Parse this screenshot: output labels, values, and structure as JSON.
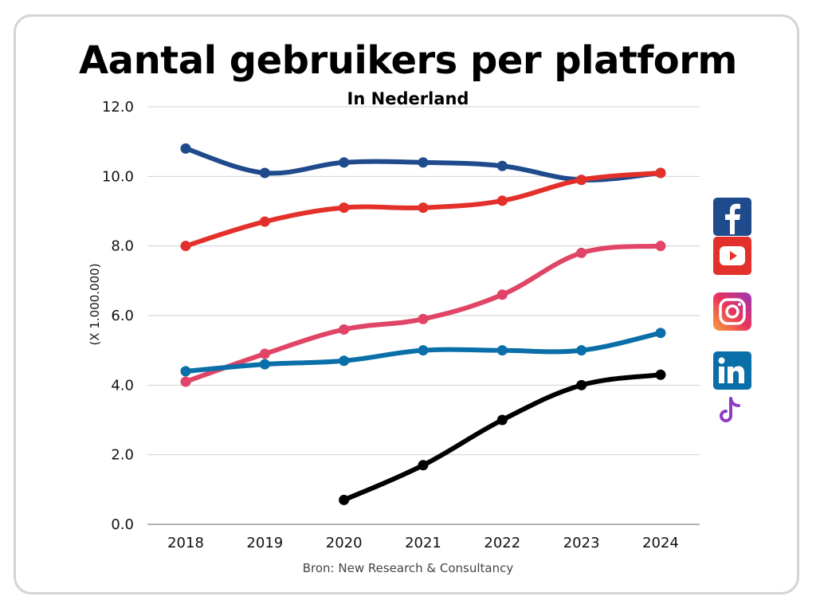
{
  "chart_data": {
    "type": "line",
    "title": "Aantal gebruikers per platform",
    "subtitle": "In Nederland",
    "ylabel": "(X 1.000.000)",
    "xlabel": "",
    "source": "Bron: New Research & Consultancy",
    "categories": [
      "2018",
      "2019",
      "2020",
      "2021",
      "2022",
      "2023",
      "2024"
    ],
    "ylim": [
      0,
      12
    ],
    "yticks": [
      "0.0",
      "2.0",
      "4.0",
      "6.0",
      "8.0",
      "10.0",
      "12.0"
    ],
    "grid": true,
    "legend": "right (platform icons)",
    "series": [
      {
        "icon": "facebook-icon",
        "color": "#1f4a8c",
        "values": [
          10.8,
          10.1,
          10.4,
          10.4,
          10.3,
          9.9,
          10.1
        ]
      },
      {
        "icon": "youtube-icon",
        "color": "#e3302a",
        "values": [
          8.0,
          8.7,
          9.1,
          9.1,
          9.3,
          9.9,
          10.1
        ]
      },
      {
        "icon": "instagram-icon",
        "color": "#e04466",
        "values": [
          4.1,
          4.9,
          5.6,
          5.9,
          6.6,
          7.8,
          8.0
        ]
      },
      {
        "icon": "linkedin-icon",
        "color": "#0a6fa8",
        "values": [
          4.4,
          4.6,
          4.7,
          5.0,
          5.0,
          5.0,
          5.5
        ]
      },
      {
        "icon": "tiktok-icon",
        "color": "#000000",
        "values": [
          null,
          null,
          0.7,
          1.7,
          3.0,
          4.0,
          4.3
        ]
      }
    ]
  }
}
